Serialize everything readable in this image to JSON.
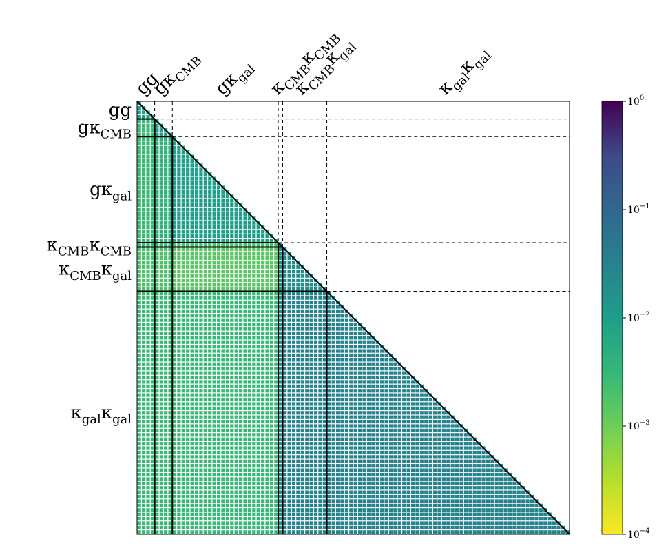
{
  "chart_data": {
    "type": "heatmap",
    "title": "",
    "xlabel": "",
    "ylabel": "",
    "blocks": [
      "gg",
      "gκCMB",
      "gκgal",
      "κCMBκCMB",
      "κCMBκgal",
      "κgalκgal"
    ],
    "block_sizes": [
      4,
      4,
      24,
      1,
      10,
      55
    ],
    "blocks_detail": [
      {
        "label": "gg",
        "main": "g",
        "main2": "g",
        "sub": ""
      },
      {
        "label": "gκCMB",
        "main": "gκ",
        "sub": "CMB"
      },
      {
        "label": "gκgal",
        "main": "gκ",
        "sub": "gal"
      },
      {
        "label": "κCMBκCMB",
        "main": "κ",
        "sub": "CMB",
        "main2": "κ",
        "sub2": "CMB"
      },
      {
        "label": "κCMBκgal",
        "main": "κ",
        "sub": "CMB",
        "main2": "κ",
        "sub2": "gal"
      },
      {
        "label": "κgalκgal",
        "main": "κ",
        "sub": "gal",
        "main2": "κ",
        "sub2": "gal"
      }
    ],
    "triangle": "lower",
    "colorscale": "viridis_r",
    "log_scale": true,
    "colorbar": {
      "range": [
        0.0001,
        1
      ],
      "ticks": [
        {
          "value": 1,
          "mantissa": "10",
          "exp": "0"
        },
        {
          "value": 0.1,
          "mantissa": "10",
          "exp": "−1"
        },
        {
          "value": 0.01,
          "mantissa": "10",
          "exp": "−2"
        },
        {
          "value": 0.001,
          "mantissa": "10",
          "exp": "−3"
        },
        {
          "value": 0.0001,
          "mantissa": "10",
          "exp": "−4"
        }
      ],
      "placement": "right"
    },
    "block_values": [
      [
        0.01
      ],
      [
        0.003,
        0.01
      ],
      [
        0.003,
        0.004,
        0.01
      ],
      [
        0.003,
        0.003,
        0.002,
        0.02
      ],
      [
        0.002,
        0.002,
        0.0015,
        0.02,
        0.02
      ],
      [
        0.003,
        0.003,
        0.003,
        0.02,
        0.03,
        0.03
      ]
    ]
  }
}
